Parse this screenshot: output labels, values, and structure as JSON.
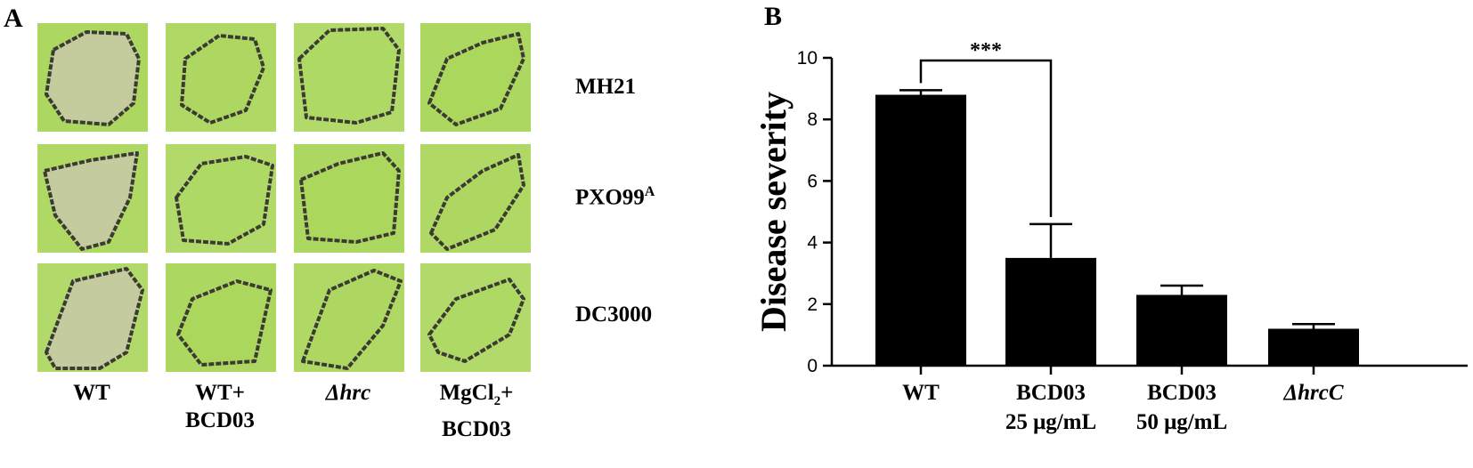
{
  "panel_a": {
    "letter": "A",
    "rows": [
      {
        "label": "MH21",
        "sup": ""
      },
      {
        "label": "PXO99",
        "sup": "A"
      },
      {
        "label": "DC3000",
        "sup": ""
      }
    ],
    "columns": [
      {
        "line1": "WT",
        "line2": ""
      },
      {
        "line1": "WT+",
        "line2": "BCD03"
      },
      {
        "line1": "Δhrc",
        "line2": ""
      },
      {
        "line1": "MgCl",
        "line1_sub": "2",
        "line1_tail": "+",
        "line2": "BCD03"
      }
    ],
    "colors": {
      "leaf": "#a9d65a",
      "lesion": "#c8c9a8",
      "border": "#3b3b33"
    }
  },
  "chart_data": {
    "letter": "B",
    "type": "bar",
    "ylabel": "Disease severity",
    "ylim": [
      0,
      10
    ],
    "yticks": [
      0,
      2,
      4,
      6,
      8,
      10
    ],
    "categories": [
      {
        "line1": "WT",
        "line2": "",
        "italic": false
      },
      {
        "line1": "BCD03",
        "line2": "25 μg/mL",
        "italic": false
      },
      {
        "line1": "BCD03",
        "line2": "50 μg/mL",
        "italic": false
      },
      {
        "line1": "ΔhrcC",
        "line2": "",
        "italic": true
      }
    ],
    "values": [
      8.8,
      3.5,
      2.3,
      1.2
    ],
    "errors": [
      0.15,
      1.1,
      0.3,
      0.15
    ],
    "significance": {
      "from": 0,
      "to": 1,
      "label": "***"
    },
    "bar_color": "#000000"
  }
}
